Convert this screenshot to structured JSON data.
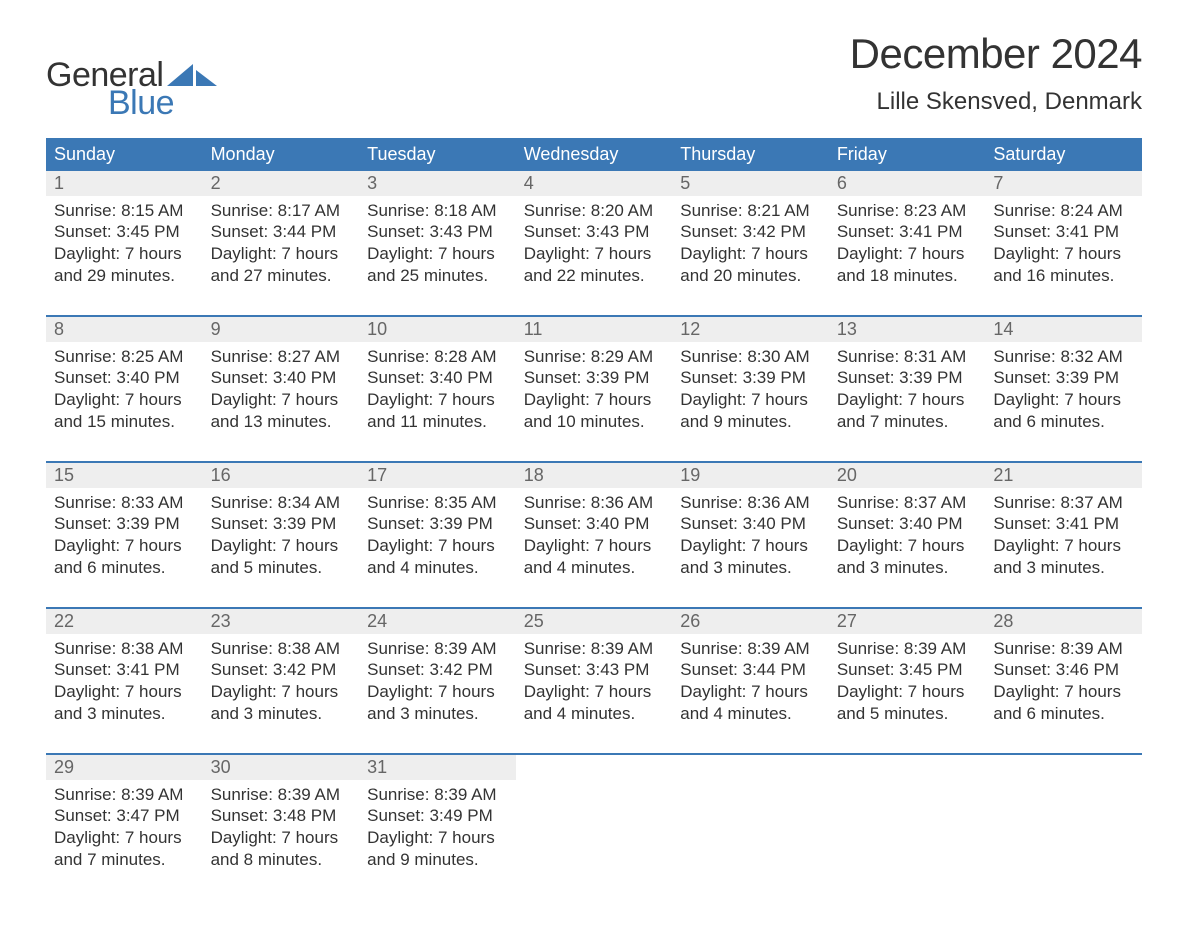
{
  "brand": {
    "line1": "General",
    "line2": "Blue",
    "text_color": "#333333",
    "accent_color": "#3b78b5"
  },
  "header": {
    "month_title": "December 2024",
    "location": "Lille Skensved, Denmark"
  },
  "colors": {
    "header_bg": "#3b78b5",
    "header_text": "#ffffff",
    "daynum_bg": "#eeeeee",
    "daynum_text": "#666666",
    "body_text": "#333333",
    "week_divider": "#3b78b5",
    "page_bg": "#ffffff"
  },
  "typography": {
    "month_title_fontsize": 42,
    "location_fontsize": 24,
    "dayheader_fontsize": 18,
    "daynum_fontsize": 18,
    "cell_fontsize": 17,
    "logo_fontsize": 34
  },
  "calendar": {
    "day_headers": [
      "Sunday",
      "Monday",
      "Tuesday",
      "Wednesday",
      "Thursday",
      "Friday",
      "Saturday"
    ],
    "weeks": [
      [
        {
          "n": "1",
          "sunrise": "Sunrise: 8:15 AM",
          "sunset": "Sunset: 3:45 PM",
          "dl1": "Daylight: 7 hours",
          "dl2": "and 29 minutes."
        },
        {
          "n": "2",
          "sunrise": "Sunrise: 8:17 AM",
          "sunset": "Sunset: 3:44 PM",
          "dl1": "Daylight: 7 hours",
          "dl2": "and 27 minutes."
        },
        {
          "n": "3",
          "sunrise": "Sunrise: 8:18 AM",
          "sunset": "Sunset: 3:43 PM",
          "dl1": "Daylight: 7 hours",
          "dl2": "and 25 minutes."
        },
        {
          "n": "4",
          "sunrise": "Sunrise: 8:20 AM",
          "sunset": "Sunset: 3:43 PM",
          "dl1": "Daylight: 7 hours",
          "dl2": "and 22 minutes."
        },
        {
          "n": "5",
          "sunrise": "Sunrise: 8:21 AM",
          "sunset": "Sunset: 3:42 PM",
          "dl1": "Daylight: 7 hours",
          "dl2": "and 20 minutes."
        },
        {
          "n": "6",
          "sunrise": "Sunrise: 8:23 AM",
          "sunset": "Sunset: 3:41 PM",
          "dl1": "Daylight: 7 hours",
          "dl2": "and 18 minutes."
        },
        {
          "n": "7",
          "sunrise": "Sunrise: 8:24 AM",
          "sunset": "Sunset: 3:41 PM",
          "dl1": "Daylight: 7 hours",
          "dl2": "and 16 minutes."
        }
      ],
      [
        {
          "n": "8",
          "sunrise": "Sunrise: 8:25 AM",
          "sunset": "Sunset: 3:40 PM",
          "dl1": "Daylight: 7 hours",
          "dl2": "and 15 minutes."
        },
        {
          "n": "9",
          "sunrise": "Sunrise: 8:27 AM",
          "sunset": "Sunset: 3:40 PM",
          "dl1": "Daylight: 7 hours",
          "dl2": "and 13 minutes."
        },
        {
          "n": "10",
          "sunrise": "Sunrise: 8:28 AM",
          "sunset": "Sunset: 3:40 PM",
          "dl1": "Daylight: 7 hours",
          "dl2": "and 11 minutes."
        },
        {
          "n": "11",
          "sunrise": "Sunrise: 8:29 AM",
          "sunset": "Sunset: 3:39 PM",
          "dl1": "Daylight: 7 hours",
          "dl2": "and 10 minutes."
        },
        {
          "n": "12",
          "sunrise": "Sunrise: 8:30 AM",
          "sunset": "Sunset: 3:39 PM",
          "dl1": "Daylight: 7 hours",
          "dl2": "and 9 minutes."
        },
        {
          "n": "13",
          "sunrise": "Sunrise: 8:31 AM",
          "sunset": "Sunset: 3:39 PM",
          "dl1": "Daylight: 7 hours",
          "dl2": "and 7 minutes."
        },
        {
          "n": "14",
          "sunrise": "Sunrise: 8:32 AM",
          "sunset": "Sunset: 3:39 PM",
          "dl1": "Daylight: 7 hours",
          "dl2": "and 6 minutes."
        }
      ],
      [
        {
          "n": "15",
          "sunrise": "Sunrise: 8:33 AM",
          "sunset": "Sunset: 3:39 PM",
          "dl1": "Daylight: 7 hours",
          "dl2": "and 6 minutes."
        },
        {
          "n": "16",
          "sunrise": "Sunrise: 8:34 AM",
          "sunset": "Sunset: 3:39 PM",
          "dl1": "Daylight: 7 hours",
          "dl2": "and 5 minutes."
        },
        {
          "n": "17",
          "sunrise": "Sunrise: 8:35 AM",
          "sunset": "Sunset: 3:39 PM",
          "dl1": "Daylight: 7 hours",
          "dl2": "and 4 minutes."
        },
        {
          "n": "18",
          "sunrise": "Sunrise: 8:36 AM",
          "sunset": "Sunset: 3:40 PM",
          "dl1": "Daylight: 7 hours",
          "dl2": "and 4 minutes."
        },
        {
          "n": "19",
          "sunrise": "Sunrise: 8:36 AM",
          "sunset": "Sunset: 3:40 PM",
          "dl1": "Daylight: 7 hours",
          "dl2": "and 3 minutes."
        },
        {
          "n": "20",
          "sunrise": "Sunrise: 8:37 AM",
          "sunset": "Sunset: 3:40 PM",
          "dl1": "Daylight: 7 hours",
          "dl2": "and 3 minutes."
        },
        {
          "n": "21",
          "sunrise": "Sunrise: 8:37 AM",
          "sunset": "Sunset: 3:41 PM",
          "dl1": "Daylight: 7 hours",
          "dl2": "and 3 minutes."
        }
      ],
      [
        {
          "n": "22",
          "sunrise": "Sunrise: 8:38 AM",
          "sunset": "Sunset: 3:41 PM",
          "dl1": "Daylight: 7 hours",
          "dl2": "and 3 minutes."
        },
        {
          "n": "23",
          "sunrise": "Sunrise: 8:38 AM",
          "sunset": "Sunset: 3:42 PM",
          "dl1": "Daylight: 7 hours",
          "dl2": "and 3 minutes."
        },
        {
          "n": "24",
          "sunrise": "Sunrise: 8:39 AM",
          "sunset": "Sunset: 3:42 PM",
          "dl1": "Daylight: 7 hours",
          "dl2": "and 3 minutes."
        },
        {
          "n": "25",
          "sunrise": "Sunrise: 8:39 AM",
          "sunset": "Sunset: 3:43 PM",
          "dl1": "Daylight: 7 hours",
          "dl2": "and 4 minutes."
        },
        {
          "n": "26",
          "sunrise": "Sunrise: 8:39 AM",
          "sunset": "Sunset: 3:44 PM",
          "dl1": "Daylight: 7 hours",
          "dl2": "and 4 minutes."
        },
        {
          "n": "27",
          "sunrise": "Sunrise: 8:39 AM",
          "sunset": "Sunset: 3:45 PM",
          "dl1": "Daylight: 7 hours",
          "dl2": "and 5 minutes."
        },
        {
          "n": "28",
          "sunrise": "Sunrise: 8:39 AM",
          "sunset": "Sunset: 3:46 PM",
          "dl1": "Daylight: 7 hours",
          "dl2": "and 6 minutes."
        }
      ],
      [
        {
          "n": "29",
          "sunrise": "Sunrise: 8:39 AM",
          "sunset": "Sunset: 3:47 PM",
          "dl1": "Daylight: 7 hours",
          "dl2": "and 7 minutes."
        },
        {
          "n": "30",
          "sunrise": "Sunrise: 8:39 AM",
          "sunset": "Sunset: 3:48 PM",
          "dl1": "Daylight: 7 hours",
          "dl2": "and 8 minutes."
        },
        {
          "n": "31",
          "sunrise": "Sunrise: 8:39 AM",
          "sunset": "Sunset: 3:49 PM",
          "dl1": "Daylight: 7 hours",
          "dl2": "and 9 minutes."
        },
        null,
        null,
        null,
        null
      ]
    ]
  }
}
